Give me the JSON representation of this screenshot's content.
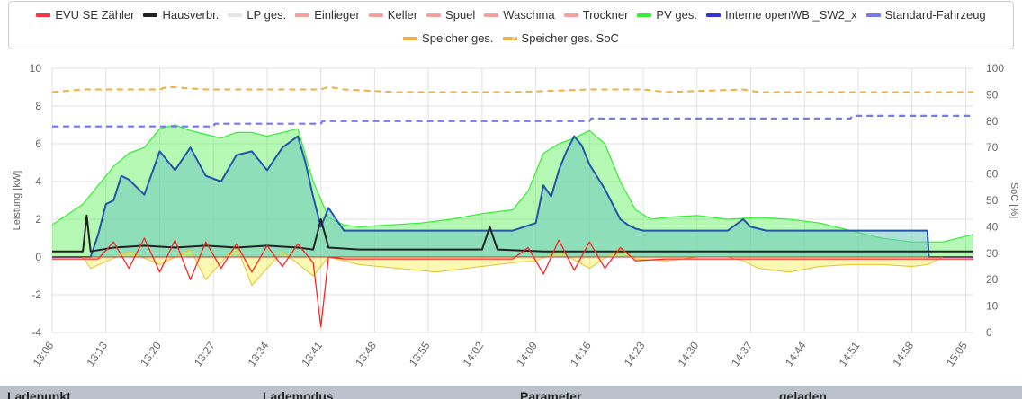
{
  "legend": {
    "row1": [
      {
        "label": "EVU SE Zähler",
        "color": "#ff3344",
        "dashed": false
      },
      {
        "label": "Hausverbr.",
        "color": "#222222",
        "dashed": false
      },
      {
        "label": "LP ges.",
        "color": "#e4e4e4",
        "dashed": false
      },
      {
        "label": "Einlieger",
        "color": "#f4a0a0",
        "dashed": false
      },
      {
        "label": "Keller",
        "color": "#f4a0a0",
        "dashed": false
      },
      {
        "label": "Spuel",
        "color": "#f4a0a0",
        "dashed": false
      },
      {
        "label": "Waschma",
        "color": "#f4a0a0",
        "dashed": false
      },
      {
        "label": "Trockner",
        "color": "#f4a0a0",
        "dashed": false
      },
      {
        "label": "PV ges.",
        "color": "#33ee33",
        "dashed": false
      },
      {
        "label": "Interne openWB _SW2_x",
        "color": "#3333dd",
        "dashed": false
      },
      {
        "label": "Standard-Fahrzeug",
        "color": "#7777ee",
        "dashed": false
      }
    ],
    "row2": [
      {
        "label": "Speicher ges.",
        "color": "#f0b040",
        "dashed": false
      },
      {
        "label": "Speicher ges. SoC",
        "color": "#f0b040",
        "dashed": true
      }
    ]
  },
  "chart_data": {
    "type": "line",
    "ylabel": "Leistung [kW]",
    "y2label": "SoC [%]",
    "ylim": [
      -4,
      10
    ],
    "y2lim": [
      0,
      100
    ],
    "yticks": [
      -4,
      -2,
      0,
      2,
      4,
      6,
      8,
      10
    ],
    "y2ticks": [
      0,
      10,
      20,
      30,
      40,
      50,
      60,
      70,
      80,
      90,
      100
    ],
    "xlim": [
      0,
      120
    ],
    "x_tick_labels": [
      "13:06",
      "13:13",
      "13:20",
      "13:27",
      "13:34",
      "13:41",
      "13:48",
      "13:55",
      "14:02",
      "14:09",
      "14:16",
      "14:23",
      "14:30",
      "14:37",
      "14:44",
      "14:51",
      "14:58",
      "15:05"
    ],
    "x_tick_minutes": [
      0,
      7,
      14,
      21,
      28,
      35,
      42,
      49,
      56,
      63,
      70,
      77,
      84,
      91,
      98,
      105,
      112,
      119
    ],
    "grid": true,
    "series": [
      {
        "name": "PV ges.",
        "axis": "left",
        "style": "area",
        "x": [
          0,
          4,
          6,
          8,
          10,
          12,
          14,
          16,
          18,
          20,
          22,
          24,
          26,
          28,
          30,
          32,
          34,
          36,
          38,
          40,
          44,
          48,
          52,
          56,
          60,
          62,
          64,
          66,
          68,
          70,
          72,
          74,
          76,
          78,
          80,
          84,
          88,
          92,
          96,
          100,
          104,
          108,
          112,
          116,
          120
        ],
        "y": [
          1.7,
          2.8,
          3.8,
          4.8,
          5.5,
          5.8,
          6.8,
          7.0,
          6.7,
          6.5,
          6.3,
          6.6,
          6.6,
          6.4,
          6.6,
          6.8,
          4.0,
          2.1,
          1.7,
          1.6,
          1.7,
          1.8,
          2.0,
          2.3,
          2.5,
          3.5,
          5.5,
          6.0,
          6.3,
          6.7,
          6.0,
          4.0,
          2.5,
          2.0,
          2.1,
          2.2,
          2.0,
          2.1,
          2.0,
          1.8,
          1.4,
          1.0,
          0.8,
          0.8,
          1.2
        ]
      },
      {
        "name": "Interne openWB _SW2_x",
        "axis": "left",
        "style": "area",
        "x": [
          0,
          5,
          6,
          7,
          8,
          9,
          10,
          12,
          14,
          16,
          18,
          20,
          22,
          24,
          26,
          28,
          30,
          32,
          33,
          34,
          35,
          36,
          37,
          38,
          40,
          50,
          60,
          63,
          64,
          65,
          66,
          67,
          68,
          69,
          70,
          72,
          74,
          75,
          76,
          77,
          78,
          80,
          84,
          88,
          90,
          91,
          92,
          93,
          94,
          96,
          100,
          104,
          110,
          114,
          114.2,
          120
        ],
        "y": [
          0,
          0,
          1.2,
          2.8,
          3.0,
          4.3,
          4.1,
          3.3,
          5.6,
          4.6,
          5.8,
          4.3,
          4.0,
          5.4,
          5.6,
          4.6,
          5.8,
          6.4,
          5.0,
          3.2,
          1.6,
          2.6,
          2.0,
          1.4,
          1.4,
          1.4,
          1.4,
          1.8,
          3.8,
          3.2,
          4.6,
          5.6,
          6.4,
          5.9,
          4.9,
          3.6,
          2.0,
          1.7,
          1.5,
          1.4,
          1.4,
          1.4,
          1.4,
          1.4,
          2.0,
          1.6,
          1.5,
          1.4,
          1.4,
          1.4,
          1.4,
          1.4,
          1.4,
          1.4,
          0,
          0
        ]
      },
      {
        "name": "Speicher ges.",
        "axis": "left",
        "style": "area",
        "x": [
          0,
          4,
          5,
          10,
          14,
          18,
          20,
          24,
          26,
          30,
          34,
          36,
          40,
          50,
          56,
          60,
          63,
          66,
          70,
          74,
          76,
          80,
          84,
          88,
          90,
          92,
          96,
          100,
          104,
          108,
          112,
          114,
          116,
          120
        ],
        "y": [
          0,
          0,
          -0.6,
          0.3,
          -0.4,
          0.4,
          -1.2,
          0.6,
          -1.5,
          0.3,
          -1.0,
          0,
          -0.4,
          -0.8,
          -0.5,
          -0.3,
          -0.2,
          0.3,
          -0.6,
          0.5,
          -0.1,
          -0.2,
          0,
          0,
          -0.2,
          -0.6,
          -0.8,
          -0.5,
          -0.4,
          -0.4,
          -0.5,
          -0.4,
          0,
          0
        ]
      },
      {
        "name": "Hausverbr.",
        "axis": "left",
        "style": "line",
        "x": [
          0,
          4,
          4.5,
          5,
          8,
          12,
          16,
          20,
          24,
          28,
          32,
          34,
          35,
          36,
          40,
          48,
          56,
          57,
          58,
          64,
          70,
          76,
          84,
          92,
          100,
          110,
          120
        ],
        "y": [
          0.3,
          0.3,
          2.2,
          0.3,
          0.5,
          0.6,
          0.5,
          0.6,
          0.5,
          0.6,
          0.5,
          0.4,
          2.0,
          0.5,
          0.4,
          0.4,
          0.4,
          1.6,
          0.4,
          0.3,
          0.3,
          0.3,
          0.3,
          0.3,
          0.3,
          0.3,
          0.3
        ]
      },
      {
        "name": "EVU SE Zähler",
        "axis": "left",
        "style": "line",
        "x": [
          0,
          6,
          8,
          10,
          12,
          14,
          16,
          18,
          20,
          22,
          24,
          26,
          28,
          30,
          32,
          34,
          35,
          36,
          38,
          40,
          50,
          56,
          60,
          62,
          64,
          66,
          68,
          70,
          72,
          74,
          76,
          80,
          90,
          100,
          110,
          120
        ],
        "y": [
          -0.1,
          -0.1,
          0.8,
          -0.6,
          1.0,
          -0.8,
          0.9,
          -1.2,
          0.8,
          -0.6,
          0.7,
          -0.8,
          0.6,
          -0.5,
          0.7,
          -0.3,
          -3.7,
          0,
          -0.1,
          -0.1,
          -0.1,
          -0.1,
          -0.1,
          0.5,
          -0.9,
          0.9,
          -0.7,
          0.8,
          -0.6,
          0.5,
          -0.2,
          -0.1,
          -0.1,
          -0.1,
          -0.1,
          -0.1
        ]
      },
      {
        "name": "Standard-Fahrzeug",
        "axis": "right",
        "style": "dashed",
        "x": [
          0,
          7,
          21,
          21.2,
          35,
          35.2,
          70,
          70.2,
          104,
          104.2,
          120
        ],
        "y": [
          78,
          78,
          78,
          79,
          79,
          80,
          80,
          81,
          81,
          82,
          82
        ]
      },
      {
        "name": "Speicher ges. SoC",
        "axis": "right",
        "style": "dashed",
        "x": [
          0,
          4,
          14,
          15,
          20,
          35,
          36,
          38,
          45,
          60,
          70,
          77,
          80,
          90,
          92,
          100,
          120
        ],
        "y": [
          91,
          92,
          92,
          93,
          92,
          92,
          93,
          92,
          91,
          91,
          92,
          92,
          91,
          92,
          91,
          91,
          91
        ]
      }
    ]
  },
  "table": {
    "headers": [
      "Ladepunkt",
      "Lademodus",
      "Parameter",
      "geladen"
    ]
  }
}
